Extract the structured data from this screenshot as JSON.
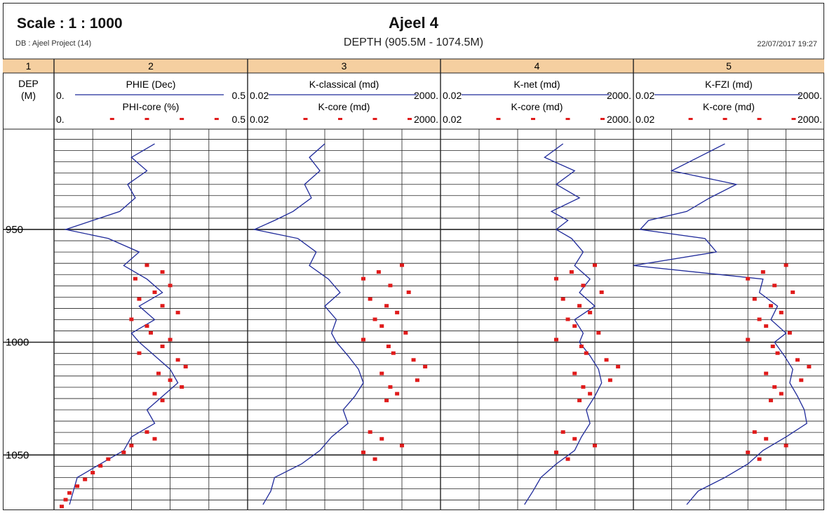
{
  "header": {
    "scale": "Scale : 1 : 1000",
    "title": "Ajeel 4",
    "db": "DB : Ajeel Project (14)",
    "depth_range": "DEPTH (905.5M - 1074.5M)",
    "date": "22/07/2017 19:27"
  },
  "tracks": [
    {
      "number": "1",
      "labels": [
        "DEP",
        "(M)"
      ]
    },
    {
      "number": "2",
      "curve": {
        "name": "PHIE (Dec)",
        "left": "0.",
        "right": "0.5"
      },
      "core": {
        "name": "PHI-core (%)",
        "left": "0.",
        "right": "0.5"
      }
    },
    {
      "number": "3",
      "curve": {
        "name": "K-classical (md)",
        "left": "0.02",
        "right": "2000."
      },
      "core": {
        "name": "K-core (md)",
        "left": "0.02",
        "right": "2000."
      }
    },
    {
      "number": "4",
      "curve": {
        "name": "K-net (md)",
        "left": "0.02",
        "right": "2000."
      },
      "core": {
        "name": "K-core (md)",
        "left": "0.02",
        "right": "2000."
      }
    },
    {
      "number": "5",
      "curve": {
        "name": "K-FZI (md)",
        "left": "0.02",
        "right": "2000."
      },
      "core": {
        "name": "K-core (md)",
        "left": "0.02",
        "right": "2000."
      }
    }
  ],
  "colors": {
    "curve": "#1f2a9a",
    "core": "#e01b1b",
    "track_header": "#f5cfa0"
  },
  "chart_data": {
    "type": "line",
    "title": "Ajeel 4",
    "depth_axis": {
      "label": "DEP (M)",
      "range": [
        905.5,
        1074.5
      ],
      "ticks": [
        950,
        1000,
        1050
      ],
      "unit": "M"
    },
    "grid": true,
    "series": [
      {
        "name": "PHIE (Dec)",
        "track": 2,
        "scale": [
          0,
          0.5
        ],
        "log": false,
        "depth": [
          912,
          918,
          924,
          930,
          936,
          942,
          946,
          950,
          954,
          960,
          966,
          972,
          978,
          984,
          990,
          996,
          1000,
          1006,
          1012,
          1018,
          1024,
          1030,
          1036,
          1042,
          1048,
          1054,
          1060,
          1066,
          1072
        ],
        "values": [
          0.26,
          0.2,
          0.24,
          0.19,
          0.21,
          0.17,
          0.1,
          0.03,
          0.14,
          0.22,
          0.18,
          0.24,
          0.28,
          0.22,
          0.26,
          0.2,
          0.22,
          0.26,
          0.3,
          0.32,
          0.28,
          0.24,
          0.26,
          0.2,
          0.18,
          0.12,
          0.06,
          0.05,
          0.04
        ]
      },
      {
        "name": "PHI-core (%)",
        "track": 2,
        "scale": [
          0,
          0.5
        ],
        "log": false,
        "marker": "square",
        "depth": [
          966,
          969,
          972,
          975,
          978,
          981,
          984,
          987,
          990,
          993,
          996,
          999,
          1002,
          1005,
          1008,
          1011,
          1014,
          1017,
          1020,
          1023,
          1026,
          1040,
          1043,
          1046,
          1049,
          1052,
          1055,
          1058,
          1061,
          1064,
          1067,
          1070,
          1073
        ],
        "values": [
          0.24,
          0.28,
          0.21,
          0.3,
          0.26,
          0.22,
          0.28,
          0.32,
          0.2,
          0.24,
          0.25,
          0.3,
          0.28,
          0.22,
          0.32,
          0.34,
          0.27,
          0.3,
          0.33,
          0.26,
          0.28,
          0.24,
          0.26,
          0.2,
          0.18,
          0.14,
          0.12,
          0.1,
          0.08,
          0.06,
          0.04,
          0.03,
          0.02
        ]
      },
      {
        "name": "K-classical (md)",
        "track": 3,
        "scale": [
          0.02,
          2000
        ],
        "log": true,
        "depth": [
          912,
          918,
          924,
          930,
          936,
          942,
          946,
          950,
          954,
          960,
          966,
          972,
          978,
          984,
          990,
          996,
          1000,
          1006,
          1012,
          1018,
          1024,
          1030,
          1036,
          1042,
          1048,
          1054,
          1060,
          1066,
          1072
        ],
        "values": [
          2,
          0.8,
          1.5,
          0.6,
          0.9,
          0.3,
          0.1,
          0.03,
          0.4,
          1.2,
          0.8,
          2.5,
          5,
          2,
          4,
          3,
          4,
          8,
          15,
          20,
          12,
          6,
          8,
          3,
          1.5,
          0.5,
          0.1,
          0.08,
          0.05
        ]
      },
      {
        "name": "K-core (md) track 3",
        "track": 3,
        "scale": [
          0.02,
          2000
        ],
        "log": true,
        "marker": "square",
        "depth": [
          966,
          969,
          972,
          975,
          978,
          981,
          984,
          987,
          990,
          993,
          996,
          999,
          1002,
          1005,
          1008,
          1011,
          1014,
          1017,
          1020,
          1023,
          1026,
          1040,
          1043,
          1046,
          1049,
          1052
        ],
        "values": [
          200,
          50,
          20,
          100,
          300,
          30,
          80,
          150,
          40,
          60,
          250,
          20,
          90,
          120,
          400,
          800,
          60,
          500,
          100,
          150,
          80,
          30,
          60,
          200,
          20,
          40
        ]
      },
      {
        "name": "K-net (md)",
        "track": 4,
        "scale": [
          0.02,
          2000
        ],
        "log": true,
        "depth": [
          912,
          918,
          924,
          930,
          936,
          942,
          946,
          950,
          954,
          960,
          966,
          972,
          978,
          984,
          990,
          996,
          1000,
          1006,
          1012,
          1018,
          1024,
          1030,
          1036,
          1042,
          1048,
          1054,
          1060,
          1066,
          1072
        ],
        "values": [
          30,
          10,
          60,
          20,
          80,
          15,
          40,
          20,
          50,
          100,
          60,
          150,
          80,
          200,
          60,
          100,
          80,
          150,
          250,
          300,
          200,
          120,
          150,
          90,
          60,
          20,
          8,
          5,
          3
        ]
      },
      {
        "name": "K-core (md) track 4",
        "track": 4,
        "scale": [
          0.02,
          2000
        ],
        "log": true,
        "marker": "square",
        "depth": [
          966,
          969,
          972,
          975,
          978,
          981,
          984,
          987,
          990,
          993,
          996,
          999,
          1002,
          1005,
          1008,
          1011,
          1014,
          1017,
          1020,
          1023,
          1026,
          1040,
          1043,
          1046,
          1049,
          1052
        ],
        "values": [
          200,
          50,
          20,
          100,
          300,
          30,
          80,
          150,
          40,
          60,
          250,
          20,
          90,
          120,
          400,
          800,
          60,
          500,
          100,
          150,
          80,
          30,
          60,
          200,
          20,
          40
        ]
      },
      {
        "name": "K-FZI (md)",
        "track": 5,
        "scale": [
          0.02,
          2000
        ],
        "log": true,
        "depth": [
          912,
          918,
          924,
          930,
          936,
          942,
          946,
          950,
          954,
          960,
          966,
          972,
          978,
          984,
          990,
          996,
          1000,
          1006,
          1012,
          1018,
          1024,
          1030,
          1036,
          1042,
          1048,
          1054,
          1060,
          1066,
          1072
        ],
        "values": [
          5,
          1,
          0.2,
          10,
          2,
          0.5,
          0.05,
          0.03,
          1.5,
          3,
          0.02,
          50,
          40,
          120,
          80,
          200,
          100,
          180,
          300,
          250,
          400,
          600,
          700,
          200,
          50,
          20,
          5,
          1,
          0.5
        ]
      },
      {
        "name": "K-core (md) track 5",
        "track": 5,
        "scale": [
          0.02,
          2000
        ],
        "log": true,
        "marker": "square",
        "depth": [
          966,
          969,
          972,
          975,
          978,
          981,
          984,
          987,
          990,
          993,
          996,
          999,
          1002,
          1005,
          1008,
          1011,
          1014,
          1017,
          1020,
          1023,
          1026,
          1040,
          1043,
          1046,
          1049,
          1052
        ],
        "values": [
          200,
          50,
          20,
          100,
          300,
          30,
          80,
          150,
          40,
          60,
          250,
          20,
          90,
          120,
          400,
          800,
          60,
          500,
          100,
          150,
          80,
          30,
          60,
          200,
          20,
          40
        ]
      }
    ]
  }
}
